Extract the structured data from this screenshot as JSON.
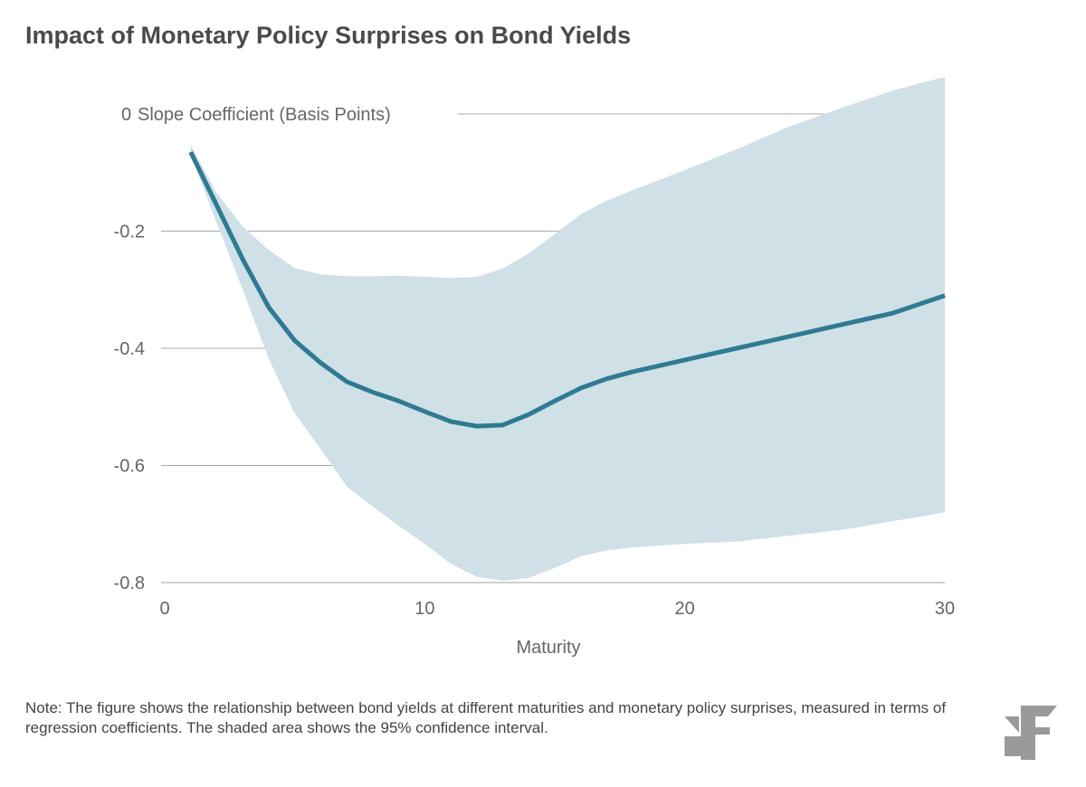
{
  "title": "Impact of Monetary Policy Surprises on Bond Yields",
  "note": "Note: The figure shows the relationship between bond yields at different maturities and monetary policy surprises, measured in terms of regression coefficients. The shaded area shows the 95% confidence interval.",
  "logo": "BF",
  "chart_data": {
    "type": "line",
    "title": "Impact of Monetary Policy Surprises on Bond Yields",
    "xlabel": "Maturity",
    "ylabel": "Slope Coefficient (Basis Points)",
    "xlim": [
      0,
      30
    ],
    "ylim": [
      -0.8,
      0
    ],
    "xticks": [
      0,
      10,
      20,
      30
    ],
    "yticks": [
      0,
      -0.2,
      -0.4,
      -0.6,
      -0.8
    ],
    "ytick_labels": [
      "0",
      "-0.2",
      "-0.4",
      "-0.6",
      "-0.8"
    ],
    "grid": "horizontal",
    "colors": {
      "line": "#2f7a93",
      "band": "#cfe0e7",
      "grid": "#a8a8a8"
    },
    "x": [
      1,
      2,
      3,
      4,
      5,
      6,
      7,
      8,
      9,
      10,
      11,
      12,
      13,
      14,
      15,
      16,
      17,
      18,
      19,
      20,
      21,
      22,
      23,
      24,
      25,
      26,
      27,
      28,
      29,
      30
    ],
    "series": [
      {
        "role": "estimate",
        "values": [
          -0.065,
          -0.156,
          -0.248,
          -0.33,
          -0.387,
          -0.425,
          -0.457,
          -0.475,
          -0.49,
          -0.508,
          -0.525,
          -0.533,
          -0.531,
          -0.513,
          -0.49,
          -0.468,
          -0.452,
          -0.44,
          -0.43,
          -0.42,
          -0.41,
          -0.4,
          -0.39,
          -0.38,
          -0.37,
          -0.36,
          -0.35,
          -0.34,
          -0.325,
          -0.31
        ]
      },
      {
        "role": "ci_upper",
        "values": [
          -0.053,
          -0.135,
          -0.192,
          -0.232,
          -0.263,
          -0.274,
          -0.277,
          -0.277,
          -0.276,
          -0.278,
          -0.28,
          -0.278,
          -0.264,
          -0.238,
          -0.205,
          -0.171,
          -0.148,
          -0.13,
          -0.113,
          -0.096,
          -0.078,
          -0.06,
          -0.041,
          -0.022,
          -0.006,
          0.01,
          0.025,
          0.04,
          0.052,
          0.063
        ]
      },
      {
        "role": "ci_lower",
        "values": [
          -0.07,
          -0.186,
          -0.3,
          -0.418,
          -0.511,
          -0.572,
          -0.636,
          -0.67,
          -0.703,
          -0.734,
          -0.768,
          -0.79,
          -0.797,
          -0.792,
          -0.775,
          -0.755,
          -0.745,
          -0.74,
          -0.737,
          -0.734,
          -0.732,
          -0.73,
          -0.725,
          -0.72,
          -0.715,
          -0.71,
          -0.703,
          -0.695,
          -0.688,
          -0.68
        ]
      }
    ]
  }
}
